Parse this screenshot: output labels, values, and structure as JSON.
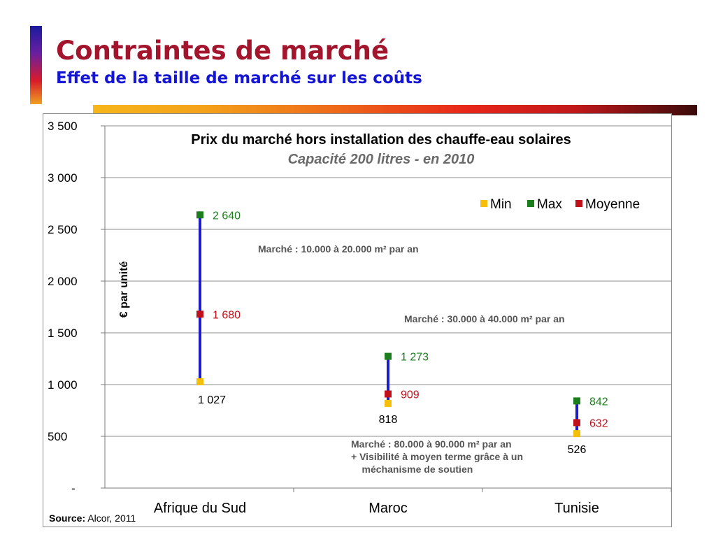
{
  "slide": {
    "title": "Contraintes de marché",
    "subtitle": "Effet de la taille de marché sur les coûts"
  },
  "source": {
    "label": "Source:",
    "text": "Alcor, 2011"
  },
  "colors": {
    "title": "#a3142d",
    "subtitle": "#1515d6",
    "range_line": "#1c1ccc",
    "min": "#f5be0a",
    "max": "#1b7d1b",
    "moyenne": "#c0101a"
  },
  "chart_data": {
    "type": "scatter",
    "title": "Prix du marché hors installation des chauffe-eau solaires",
    "subtitle": "Capacité 200 litres - en 2010",
    "ylabel": "€ par unité",
    "xlabel": "",
    "ylim": [
      0,
      3500
    ],
    "yticks": [
      0,
      500,
      1000,
      1500,
      2000,
      2500,
      3000,
      3500
    ],
    "ytick_labels": [
      "-",
      "500",
      "1 000",
      "1 500",
      "2 000",
      "2 500",
      "3 000",
      "3 500"
    ],
    "grid": true,
    "legend_position": "top-right",
    "categories": [
      "Afrique du Sud",
      "Maroc",
      "Tunisie"
    ],
    "series": [
      {
        "name": "Min",
        "values": [
          1027,
          818,
          526
        ],
        "labels": [
          "1 027",
          "818",
          "526"
        ]
      },
      {
        "name": "Max",
        "values": [
          2640,
          1273,
          842
        ],
        "labels": [
          "2 640",
          "1 273",
          "842"
        ]
      },
      {
        "name": "Moyenne",
        "values": [
          1680,
          909,
          632
        ],
        "labels": [
          "1 680",
          "909",
          "632"
        ]
      }
    ],
    "annotations": [
      {
        "lines": [
          "Marché : 10.000 à 20.000 m² par an"
        ]
      },
      {
        "lines": [
          "Marché : 30.000 à 40.000 m² par an"
        ]
      },
      {
        "lines": [
          "Marché : 80.000 à 90.000 m² par an",
          "+ Visibilité à moyen terme grâce à un",
          "    méchanisme de soutien"
        ]
      }
    ]
  }
}
